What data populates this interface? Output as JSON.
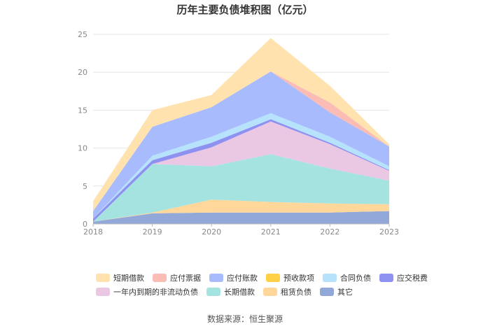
{
  "chart_data": {
    "type": "area",
    "stacked": true,
    "title": "历年主要负债堆积图（亿元）",
    "categories": [
      "2018",
      "2019",
      "2020",
      "2021",
      "2022",
      "2023"
    ],
    "ylim": [
      0,
      25
    ],
    "yticks": [
      0,
      5,
      10,
      15,
      20,
      25
    ],
    "grid": true,
    "legend_position": "bottom",
    "series": [
      {
        "name": "其它",
        "color": "#91a8d9",
        "values": [
          0.3,
          1.4,
          1.5,
          1.5,
          1.5,
          1.7
        ]
      },
      {
        "name": "租赁负债",
        "color": "#ffd79a",
        "values": [
          0.0,
          0.1,
          1.7,
          1.4,
          1.2,
          0.9
        ]
      },
      {
        "name": "长期借款",
        "color": "#a5e3e0",
        "values": [
          0.0,
          6.4,
          4.4,
          6.3,
          4.6,
          3.1
        ]
      },
      {
        "name": "一年内到期的非流动负债",
        "color": "#eac8e3",
        "values": [
          0.0,
          0.0,
          2.5,
          4.3,
          3.2,
          1.3
        ]
      },
      {
        "name": "应交税费",
        "color": "#8f91f0",
        "values": [
          0.4,
          0.5,
          0.6,
          0.3,
          0.2,
          0.1
        ]
      },
      {
        "name": "合同负债",
        "color": "#b6e3fb",
        "values": [
          0.0,
          0.6,
          0.8,
          0.8,
          0.8,
          0.5
        ]
      },
      {
        "name": "预收款项",
        "color": "#ffcf44",
        "values": [
          0.0,
          0.0,
          0.0,
          0.0,
          0.0,
          0.0
        ]
      },
      {
        "name": "应付账款",
        "color": "#a8bbfd",
        "values": [
          1.0,
          3.8,
          3.9,
          5.5,
          3.2,
          2.6
        ]
      },
      {
        "name": "应付票据",
        "color": "#fbbcb5",
        "values": [
          0.0,
          0.0,
          0.0,
          0.0,
          1.3,
          0.0
        ]
      },
      {
        "name": "短期借款",
        "color": "#ffe2ae",
        "values": [
          1.3,
          2.2,
          1.6,
          4.4,
          2.2,
          0.3
        ]
      }
    ],
    "legend_order": [
      "短期借款",
      "应付票据",
      "应付账款",
      "预收款项",
      "合同负债",
      "应交税费",
      "一年内到期的非流动负债",
      "长期借款",
      "租赁负债",
      "其它"
    ],
    "source": "数据来源：恒生聚源"
  }
}
